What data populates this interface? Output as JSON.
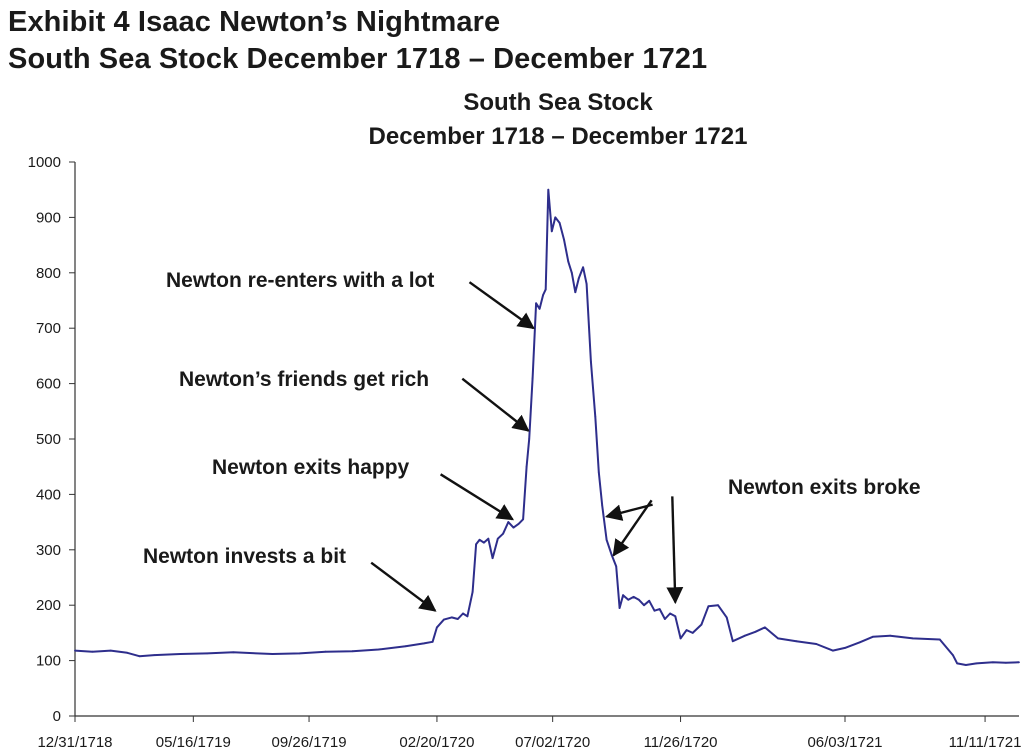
{
  "header": {
    "line1": "Exhibit 4  Isaac Newton’s Nightmare",
    "line2": "South Sea Stock December 1718 – December 1721"
  },
  "chart_data": {
    "type": "line",
    "title": "South Sea Stock",
    "subtitle": "December 1718 – December 1721",
    "xlabel": "",
    "ylabel": "",
    "ylim": [
      0,
      1000
    ],
    "yticks": [
      0,
      100,
      200,
      300,
      400,
      500,
      600,
      700,
      800,
      900,
      1000
    ],
    "xlim": [
      "1718-12-31",
      "1721-12-20"
    ],
    "xticks": [
      {
        "date": "1718-12-31",
        "label": "12/31/1718"
      },
      {
        "date": "1719-05-16",
        "label": "05/16/1719"
      },
      {
        "date": "1719-09-26",
        "label": "09/26/1719"
      },
      {
        "date": "1720-02-20",
        "label": "02/20/1720"
      },
      {
        "date": "1720-07-02",
        "label": "07/02/1720"
      },
      {
        "date": "1720-11-26",
        "label": "11/26/1720"
      },
      {
        "date": "1721-06-03",
        "label": "06/03/1721"
      },
      {
        "date": "1721-11-11",
        "label": "11/11/1721"
      }
    ],
    "grid": false,
    "legend": "none",
    "line_color": "#2e2e8c",
    "series": [
      {
        "points": [
          [
            "1718-12-31",
            118
          ],
          [
            "1719-01-20",
            116
          ],
          [
            "1719-02-10",
            118
          ],
          [
            "1719-03-01",
            114
          ],
          [
            "1719-03-15",
            108
          ],
          [
            "1719-04-01",
            110
          ],
          [
            "1719-05-01",
            112
          ],
          [
            "1719-06-01",
            113
          ],
          [
            "1719-07-01",
            115
          ],
          [
            "1719-08-15",
            112
          ],
          [
            "1719-09-15",
            113
          ],
          [
            "1719-10-15",
            116
          ],
          [
            "1719-11-15",
            117
          ],
          [
            "1719-12-15",
            120
          ],
          [
            "1720-01-15",
            126
          ],
          [
            "1720-02-05",
            131
          ],
          [
            "1720-02-15",
            134
          ],
          [
            "1720-02-20",
            160
          ],
          [
            "1720-02-28",
            174
          ],
          [
            "1720-03-08",
            178
          ],
          [
            "1720-03-15",
            175
          ],
          [
            "1720-03-21",
            185
          ],
          [
            "1720-03-26",
            180
          ],
          [
            "1720-04-01",
            224
          ],
          [
            "1720-04-05",
            310
          ],
          [
            "1720-04-09",
            318
          ],
          [
            "1720-04-14",
            313
          ],
          [
            "1720-04-19",
            320
          ],
          [
            "1720-04-24",
            285
          ],
          [
            "1720-04-30",
            320
          ],
          [
            "1720-05-06",
            329
          ],
          [
            "1720-05-12",
            350
          ],
          [
            "1720-05-18",
            340
          ],
          [
            "1720-05-24",
            347
          ],
          [
            "1720-05-29",
            355
          ],
          [
            "1720-06-02",
            450
          ],
          [
            "1720-06-05",
            500
          ],
          [
            "1720-06-09",
            610
          ],
          [
            "1720-06-13",
            745
          ],
          [
            "1720-06-17",
            735
          ],
          [
            "1720-06-21",
            760
          ],
          [
            "1720-06-24",
            770
          ],
          [
            "1720-06-27",
            950
          ],
          [
            "1720-07-01",
            875
          ],
          [
            "1720-07-05",
            900
          ],
          [
            "1720-07-10",
            890
          ],
          [
            "1720-07-15",
            860
          ],
          [
            "1720-07-20",
            820
          ],
          [
            "1720-07-24",
            800
          ],
          [
            "1720-07-28",
            765
          ],
          [
            "1720-08-01",
            790
          ],
          [
            "1720-08-06",
            810
          ],
          [
            "1720-08-10",
            780
          ],
          [
            "1720-08-15",
            640
          ],
          [
            "1720-08-20",
            540
          ],
          [
            "1720-08-24",
            440
          ],
          [
            "1720-08-28",
            380
          ],
          [
            "1720-09-02",
            318
          ],
          [
            "1720-09-08",
            290
          ],
          [
            "1720-09-13",
            270
          ],
          [
            "1720-09-17",
            195
          ],
          [
            "1720-09-21",
            218
          ],
          [
            "1720-09-27",
            210
          ],
          [
            "1720-10-03",
            215
          ],
          [
            "1720-10-09",
            210
          ],
          [
            "1720-10-15",
            200
          ],
          [
            "1720-10-21",
            208
          ],
          [
            "1720-10-27",
            190
          ],
          [
            "1720-11-02",
            193
          ],
          [
            "1720-11-08",
            175
          ],
          [
            "1720-11-14",
            185
          ],
          [
            "1720-11-20",
            180
          ],
          [
            "1720-11-26",
            140
          ],
          [
            "1720-12-03",
            155
          ],
          [
            "1720-12-10",
            150
          ],
          [
            "1720-12-20",
            165
          ],
          [
            "1720-12-28",
            198
          ],
          [
            "1721-01-08",
            200
          ],
          [
            "1721-01-18",
            178
          ],
          [
            "1721-01-25",
            135
          ],
          [
            "1721-02-08",
            145
          ],
          [
            "1721-02-20",
            152
          ],
          [
            "1721-03-03",
            160
          ],
          [
            "1721-03-18",
            140
          ],
          [
            "1721-04-08",
            135
          ],
          [
            "1721-05-01",
            130
          ],
          [
            "1721-05-20",
            118
          ],
          [
            "1721-06-03",
            123
          ],
          [
            "1721-06-20",
            133
          ],
          [
            "1721-07-05",
            143
          ],
          [
            "1721-07-25",
            145
          ],
          [
            "1721-08-20",
            140
          ],
          [
            "1721-09-20",
            138
          ],
          [
            "1721-10-05",
            110
          ],
          [
            "1721-10-10",
            95
          ],
          [
            "1721-10-20",
            92
          ],
          [
            "1721-11-01",
            95
          ],
          [
            "1721-11-20",
            97
          ],
          [
            "1721-12-05",
            96
          ],
          [
            "1721-12-20",
            97
          ]
        ]
      }
    ],
    "annotations": [
      {
        "text": "Newton re-enters with a lot",
        "arrows": [
          {
            "date": "1720-06-10",
            "value": 700
          }
        ]
      },
      {
        "text": "Newton’s friends get rich",
        "arrows": [
          {
            "date": "1720-06-04",
            "value": 515
          }
        ]
      },
      {
        "text": "Newton exits happy",
        "arrows": [
          {
            "date": "1720-05-17",
            "value": 355
          }
        ]
      },
      {
        "text": "Newton invests a bit",
        "arrows": [
          {
            "date": "1720-02-18",
            "value": 190
          }
        ]
      },
      {
        "text": "Newton exits broke",
        "arrows": [
          {
            "date": "1720-09-02",
            "value": 360
          },
          {
            "date": "1720-09-10",
            "value": 290
          },
          {
            "date": "1720-11-20",
            "value": 205
          }
        ]
      }
    ]
  }
}
